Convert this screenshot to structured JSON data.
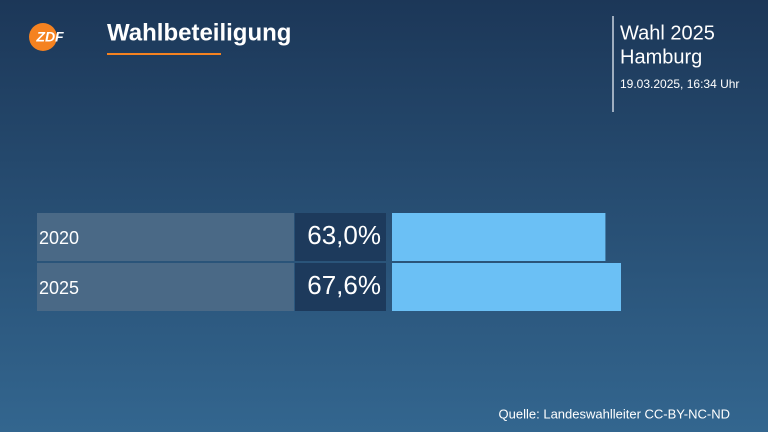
{
  "header": {
    "logo": "ZDF",
    "election": "Wahl 2025",
    "region": "Hamburg",
    "timestamp": "19.03.2025, 16:34 Uhr"
  },
  "chart_data": {
    "type": "bar",
    "title": "Wahlbeteiligung",
    "categories": [
      "2020",
      "2025"
    ],
    "values": [
      63.0,
      67.6
    ],
    "value_labels": [
      "63,0%",
      "67,6%"
    ],
    "color": "#6bc0f5"
  },
  "source": "Quelle: Landeswahlleiter CC-BY-NC-ND"
}
